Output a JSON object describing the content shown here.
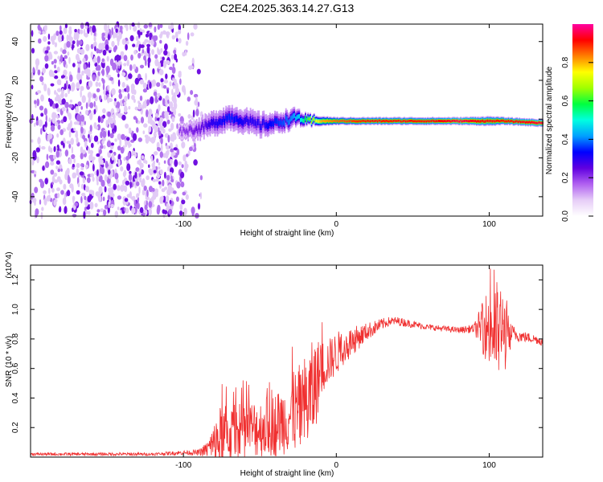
{
  "title": "C2E4.2025.363.14.27.G13",
  "chart_data": [
    {
      "type": "heatmap",
      "name": "spectrogram",
      "xlabel": "Height of straight line (km)",
      "ylabel": "Frequency (Hz)",
      "xlim": [
        -200,
        135
      ],
      "ylim": [
        -50,
        49
      ],
      "xticks": [
        -100,
        0,
        100
      ],
      "xtick_labels": [
        "-100",
        "0",
        "100"
      ],
      "yticks": [
        -40,
        -20,
        0,
        20,
        40
      ],
      "ytick_labels": [
        "-40",
        "-20",
        "0",
        "20",
        "40"
      ],
      "colorbar": {
        "label": "Normalized spectral amplitude",
        "range": [
          0,
          1
        ],
        "ticks": [
          0.0,
          0.2,
          0.4,
          0.6,
          0.8
        ],
        "tick_labels": [
          "0.0",
          "0.2",
          "0.4",
          "0.6",
          "0.8"
        ],
        "colors": [
          "#ffffff",
          "#e6cdf7",
          "#b060f0",
          "#6000e0",
          "#0000ff",
          "#00a0ff",
          "#00ffe0",
          "#00ff40",
          "#a0ff00",
          "#ffff00",
          "#ff8000",
          "#ff0000",
          "#ff00a0"
        ]
      },
      "noise_region_x": [
        -200,
        -88
      ],
      "ridge": {
        "x": [
          -100,
          -90,
          -80,
          -70,
          -60,
          -50,
          -40,
          -30,
          -25,
          -20,
          -10,
          0,
          20,
          40,
          60,
          80,
          100,
          110,
          135
        ],
        "center": [
          -6,
          -5,
          -2,
          1,
          -1,
          -3,
          -2,
          0,
          1,
          -1,
          -1,
          -1,
          -1,
          -1,
          -1,
          -1,
          -1,
          -1,
          -2
        ],
        "width": [
          4,
          5,
          6,
          6,
          6,
          6,
          5,
          5,
          4,
          3,
          2.5,
          2,
          2,
          2,
          2,
          2,
          2.5,
          2,
          2
        ],
        "amplitude": [
          0.2,
          0.25,
          0.3,
          0.35,
          0.3,
          0.3,
          0.35,
          0.4,
          0.45,
          0.6,
          0.8,
          0.85,
          0.9,
          0.9,
          0.9,
          0.95,
          0.9,
          0.9,
          0.95
        ]
      }
    },
    {
      "type": "line",
      "name": "snr",
      "xlabel": "Height of straight line (km)",
      "ylabel": "SNR (10 * v/v)",
      "multiplier_label": "(x10^4)",
      "xlim": [
        -200,
        135
      ],
      "ylim": [
        0,
        1.3
      ],
      "xticks": [
        -100,
        0,
        100
      ],
      "xtick_labels": [
        "-100",
        "0",
        "100"
      ],
      "yticks": [
        0.2,
        0.4,
        0.6,
        0.8,
        1.0,
        1.2
      ],
      "ytick_labels": [
        "0.2",
        "0.4",
        "0.6",
        "0.8",
        "1.0",
        "1.2"
      ],
      "color": "#f03030",
      "series": [
        {
          "name": "SNR",
          "x": [
            -200,
            -180,
            -160,
            -140,
            -120,
            -100,
            -90,
            -85,
            -80,
            -75,
            -70,
            -60,
            -50,
            -40,
            -30,
            -20,
            -15,
            -10,
            -5,
            0,
            5,
            10,
            20,
            30,
            35,
            40,
            60,
            80,
            90,
            95,
            100,
            105,
            110,
            115,
            120,
            130,
            135
          ],
          "base": [
            0.02,
            0.02,
            0.02,
            0.02,
            0.02,
            0.03,
            0.03,
            0.05,
            0.08,
            0.12,
            0.15,
            0.18,
            0.2,
            0.22,
            0.28,
            0.35,
            0.45,
            0.6,
            0.65,
            0.7,
            0.75,
            0.78,
            0.85,
            0.9,
            0.92,
            0.92,
            0.88,
            0.86,
            0.87,
            0.88,
            0.88,
            0.85,
            0.85,
            0.84,
            0.82,
            0.8,
            0.78
          ],
          "noise": [
            0.01,
            0.01,
            0.01,
            0.01,
            0.01,
            0.015,
            0.02,
            0.05,
            0.15,
            0.25,
            0.2,
            0.2,
            0.2,
            0.22,
            0.25,
            0.35,
            0.35,
            0.2,
            0.15,
            0.15,
            0.12,
            0.1,
            0.06,
            0.04,
            0.03,
            0.03,
            0.02,
            0.02,
            0.03,
            0.15,
            0.3,
            0.35,
            0.3,
            0.06,
            0.04,
            0.03,
            0.03
          ]
        }
      ]
    }
  ]
}
